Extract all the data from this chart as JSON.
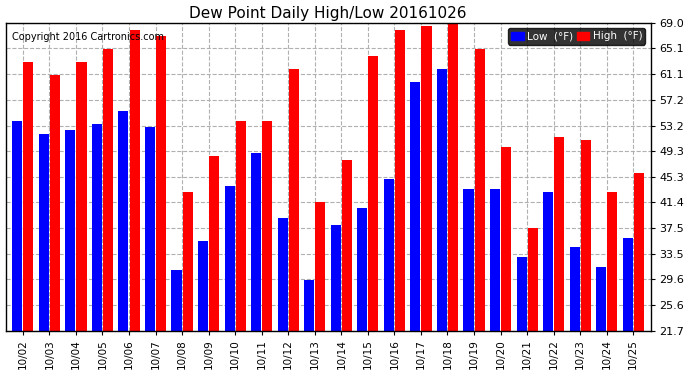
{
  "title": "Dew Point Daily High/Low 20161026",
  "copyright": "Copyright 2016 Cartronics.com",
  "dates": [
    "10/02",
    "10/03",
    "10/04",
    "10/05",
    "10/06",
    "10/07",
    "10/08",
    "10/09",
    "10/10",
    "10/11",
    "10/12",
    "10/13",
    "10/14",
    "10/15",
    "10/16",
    "10/17",
    "10/18",
    "10/19",
    "10/20",
    "10/21",
    "10/22",
    "10/23",
    "10/24",
    "10/25"
  ],
  "low": [
    54.0,
    52.0,
    52.5,
    53.5,
    55.5,
    53.0,
    31.0,
    35.5,
    44.0,
    49.0,
    39.0,
    29.5,
    38.0,
    40.5,
    45.0,
    60.0,
    62.0,
    43.5,
    43.5,
    33.0,
    43.0,
    34.5,
    31.5,
    36.0
  ],
  "high": [
    63.0,
    61.0,
    63.0,
    65.0,
    68.0,
    67.0,
    43.0,
    48.5,
    54.0,
    54.0,
    62.0,
    41.5,
    48.0,
    64.0,
    68.0,
    68.5,
    69.0,
    65.0,
    50.0,
    37.5,
    51.5,
    51.0,
    43.0,
    46.0
  ],
  "low_color": "#0000ff",
  "high_color": "#ff0000",
  "bg_color": "#ffffff",
  "grid_color": "#b0b0b0",
  "yticks": [
    21.7,
    25.6,
    29.6,
    33.5,
    37.5,
    41.4,
    45.3,
    49.3,
    53.2,
    57.2,
    61.1,
    65.1,
    69.0
  ],
  "ymin": 21.7,
  "ymax": 69.0,
  "legend_low_label": "Low  (°F)",
  "legend_high_label": "High  (°F)"
}
